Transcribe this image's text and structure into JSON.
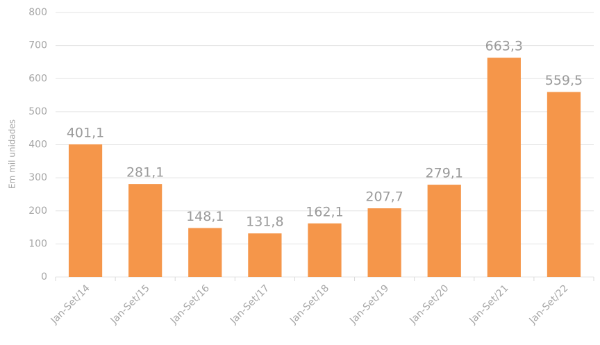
{
  "chart_data": {
    "type": "bar",
    "y_label": "Em mil unidades",
    "categories": [
      "Jan-Set/14",
      "Jan-Set/15",
      "Jan-Set/16",
      "Jan-Set/17",
      "Jan-Set/18",
      "Jan-Set/19",
      "Jan-Set/20",
      "Jan-Set/21",
      "Jan-Set/22"
    ],
    "values": [
      401.1,
      281.1,
      148.1,
      131.8,
      162.1,
      207.7,
      279.1,
      663.3,
      559.5
    ],
    "value_labels": [
      "401,1",
      "281,1",
      "148,1",
      "131,8",
      "162,1",
      "207,7",
      "279,1",
      "663,3",
      "559,5"
    ],
    "color": "#f5964a",
    "ylim": [
      0,
      800
    ],
    "yticks": [
      0,
      100,
      200,
      300,
      400,
      500,
      600,
      700,
      800
    ],
    "grid": true
  }
}
